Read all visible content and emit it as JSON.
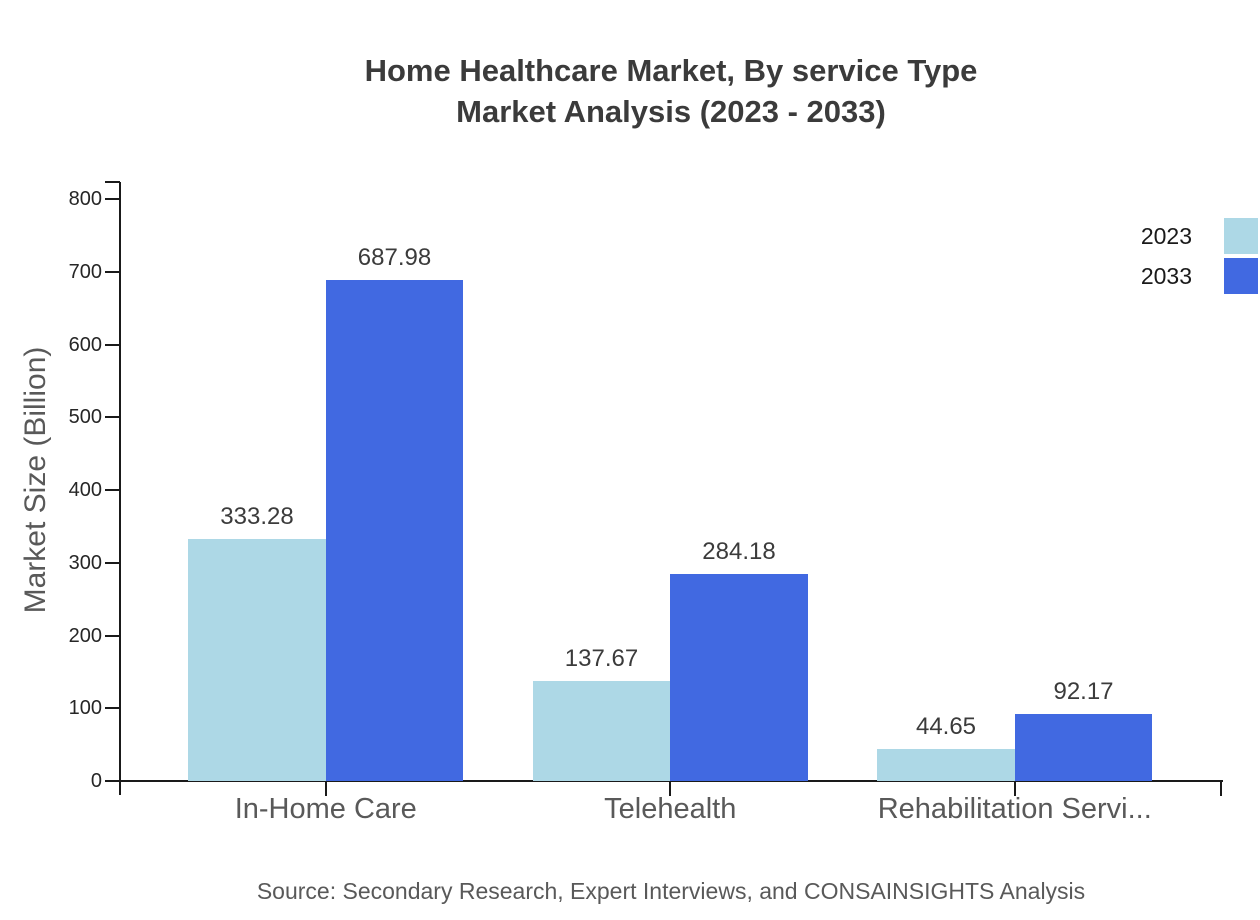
{
  "title": {
    "line1": "Home Healthcare Market, By service Type",
    "line2": "Market Analysis (2023 - 2033)"
  },
  "source_note": "Source: Secondary Research, Expert Interviews, and CONSAINSIGHTS Analysis",
  "colors": {
    "series_2023": "#ADD8E6",
    "series_2033": "#4169E1",
    "axis": "#1a1a1a",
    "muted_text": "#595959",
    "dark_text": "#3b3b3b"
  },
  "chart_data": {
    "type": "bar",
    "title": "Home Healthcare Market, By service Type Market Analysis (2023 - 2033)",
    "categories": [
      "In-Home Care",
      "Telehealth",
      "Rehabilitation Servi..."
    ],
    "series": [
      {
        "name": "2023",
        "color": "#ADD8E6",
        "values": [
          333.28,
          137.67,
          44.65
        ]
      },
      {
        "name": "2033",
        "color": "#4169E1",
        "values": [
          687.98,
          284.18,
          92.17
        ]
      }
    ],
    "ylabel": "Market Size (Billion)",
    "xlabel": "",
    "ylim": [
      0,
      800
    ],
    "yticks": [
      0,
      100,
      200,
      300,
      400,
      500,
      600,
      700,
      800
    ],
    "grid": false,
    "legend_position": "top-right",
    "value_labels": true,
    "value_label_format": "2-decimals"
  }
}
